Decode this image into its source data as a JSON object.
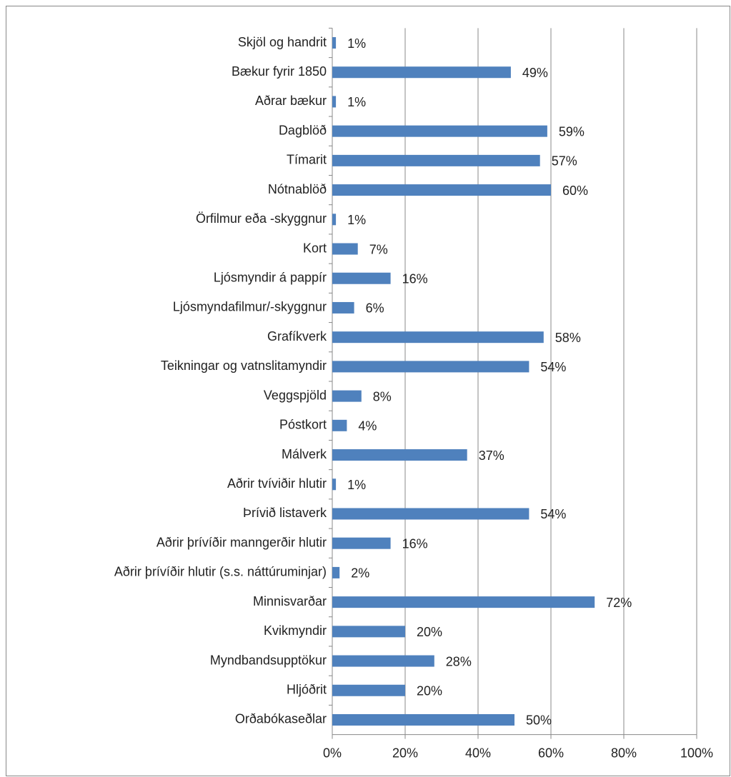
{
  "chart_data": {
    "type": "hbar",
    "color": "#4f81bd",
    "grid": true,
    "categories": [
      "Skjöl og handrit",
      "Bækur fyrir 1850",
      "Aðrar bækur",
      "Dagblöð",
      "Tímarit",
      "Nótnablöð",
      "Örfilmur eða -skyggnur",
      "Kort",
      "Ljósmyndir á pappír",
      "Ljósmyndafilmur/-skyggnur",
      "Grafíkverk",
      "Teikningar og vatnslitamyndir",
      "Veggspjöld",
      "Póstkort",
      "Málverk",
      "Aðrir tvíviðir hlutir",
      "Þrívið listaverk",
      "Aðrir þrívíðir manngerðir hlutir",
      "Aðrir þrívíðir hlutir (s.s. náttúruminjar)",
      "Minnisvarðar",
      "Kvikmyndir",
      "Myndbandsupptökur",
      "Hljóðrit",
      "Orðabókaseðlar"
    ],
    "values": [
      1,
      49,
      1,
      59,
      57,
      60,
      1,
      7,
      16,
      6,
      58,
      54,
      8,
      4,
      37,
      1,
      54,
      16,
      2,
      72,
      20,
      28,
      20,
      50
    ],
    "value_labels": [
      "1%",
      "49%",
      "1%",
      "59%",
      "57%",
      "60%",
      "1%",
      "7%",
      "16%",
      "6%",
      "58%",
      "54%",
      "8%",
      "4%",
      "37%",
      "1%",
      "54%",
      "16%",
      "2%",
      "72%",
      "20%",
      "28%",
      "20%",
      "50%"
    ],
    "xlim": [
      0,
      100
    ],
    "xticks": [
      {
        "value": 0,
        "label": "0%"
      },
      {
        "value": 20,
        "label": "20%"
      },
      {
        "value": 40,
        "label": "40%"
      },
      {
        "value": 60,
        "label": "60%"
      },
      {
        "value": 80,
        "label": "80%"
      },
      {
        "value": 100,
        "label": "100%"
      }
    ]
  }
}
